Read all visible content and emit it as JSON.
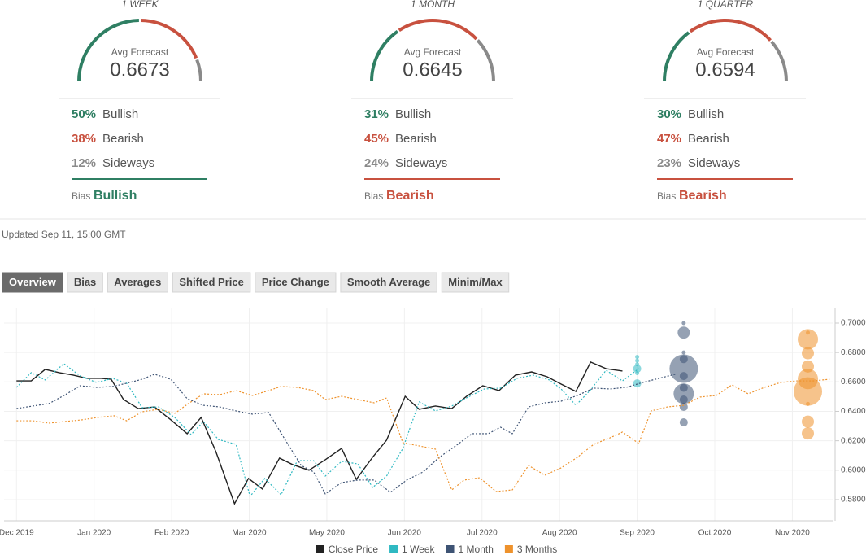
{
  "forecasts": [
    {
      "title": "1 WEEK",
      "avg_label": "Avg Forecast",
      "avg": 0.6673,
      "rows": [
        {
          "value": 50,
          "label": "50%",
          "name": "Bullish",
          "color": "#2f7f63"
        },
        {
          "value": 38,
          "label": "38%",
          "name": "Bearish",
          "color": "#c8513f"
        },
        {
          "value": 12,
          "label": "12%",
          "name": "Sideways",
          "color": "#8a8a8a"
        }
      ],
      "bias_label": "Bias",
      "bias": "Bullish",
      "bias_color": "#2f7f63"
    },
    {
      "title": "1 MONTH",
      "avg_label": "Avg Forecast",
      "avg": 0.6645,
      "rows": [
        {
          "value": 31,
          "label": "31%",
          "name": "Bullish",
          "color": "#2f7f63"
        },
        {
          "value": 45,
          "label": "45%",
          "name": "Bearish",
          "color": "#c8513f"
        },
        {
          "value": 24,
          "label": "24%",
          "name": "Sideways",
          "color": "#8a8a8a"
        }
      ],
      "bias_label": "Bias",
      "bias": "Bearish",
      "bias_color": "#c8513f"
    },
    {
      "title": "1 QUARTER",
      "avg_label": "Avg Forecast",
      "avg": 0.6594,
      "rows": [
        {
          "value": 30,
          "label": "30%",
          "name": "Bullish",
          "color": "#2f7f63"
        },
        {
          "value": 47,
          "label": "47%",
          "name": "Bearish",
          "color": "#c8513f"
        },
        {
          "value": 23,
          "label": "23%",
          "name": "Sideways",
          "color": "#8a8a8a"
        }
      ],
      "bias_label": "Bias",
      "bias": "Bearish",
      "bias_color": "#c8513f"
    }
  ],
  "updated": "Updated Sep 11, 15:00 GMT",
  "tabs": [
    "Overview",
    "Bias",
    "Averages",
    "Shifted Price",
    "Price Change",
    "Smooth Average",
    "Minim/Max"
  ],
  "active_tab": 0,
  "chart_data": {
    "type": "line",
    "grid": true,
    "xlim": [
      -0.16,
      10.53
    ],
    "ylim": [
      0.5656,
      0.7105
    ],
    "xticks": [
      {
        "value": 0,
        "label": "Dec 2019"
      },
      {
        "value": 1,
        "label": "Jan 2020"
      },
      {
        "value": 2,
        "label": "Feb 2020"
      },
      {
        "value": 3,
        "label": "Mar 2020"
      },
      {
        "value": 4,
        "label": "May 2020"
      },
      {
        "value": 5,
        "label": "Jun 2020"
      },
      {
        "value": 6,
        "label": "Jul 2020"
      },
      {
        "value": 7,
        "label": "Aug 2020"
      },
      {
        "value": 8,
        "label": "Sep 2020"
      },
      {
        "value": 9,
        "label": "Oct 2020"
      },
      {
        "value": 10,
        "label": "Nov 2020"
      }
    ],
    "yticks": [
      {
        "value": 0.7,
        "label": "0.7000"
      },
      {
        "value": 0.68,
        "label": "0.6800"
      },
      {
        "value": 0.66,
        "label": "0.6600"
      },
      {
        "value": 0.64,
        "label": "0.6400"
      },
      {
        "value": 0.62,
        "label": "0.6200"
      },
      {
        "value": 0.6,
        "label": "0.6000"
      },
      {
        "value": 0.58,
        "label": "0.5800"
      }
    ],
    "series": [
      {
        "name": "Close Price",
        "color": "#222222",
        "dashed": false,
        "x": [
          0,
          0.19,
          0.37,
          0.55,
          0.73,
          0.91,
          1.09,
          1.22,
          1.38,
          1.57,
          1.78,
          1.99,
          2.2,
          2.38,
          2.57,
          2.81,
          2.99,
          3.17,
          3.39,
          3.56,
          3.77,
          3.98,
          4.19,
          4.38,
          4.59,
          4.77,
          5.01,
          5.19,
          5.4,
          5.61,
          5.8,
          6.01,
          6.22,
          6.43,
          6.64,
          6.84,
          7.02,
          7.21,
          7.4,
          7.6,
          7.81
        ],
        "values": [
          0.6607,
          0.6607,
          0.6685,
          0.6663,
          0.6646,
          0.6624,
          0.6624,
          0.6618,
          0.648,
          0.6419,
          0.643,
          0.6342,
          0.6248,
          0.6359,
          0.6126,
          0.5772,
          0.5944,
          0.5872,
          0.6082,
          0.6038,
          0.6,
          0.6071,
          0.6148,
          0.5938,
          0.6088,
          0.6204,
          0.6502,
          0.6414,
          0.6436,
          0.6419,
          0.6502,
          0.6574,
          0.6541,
          0.6646,
          0.6668,
          0.6635,
          0.6585,
          0.6535,
          0.6735,
          0.669,
          0.6674
        ]
      },
      {
        "name": "1 Week",
        "color": "#2fb9c2",
        "dashed": true,
        "x": [
          0,
          0.19,
          0.37,
          0.61,
          0.82,
          1.03,
          1.24,
          1.42,
          1.62,
          1.83,
          2.04,
          2.25,
          2.41,
          2.6,
          2.83,
          3.01,
          3.2,
          3.41,
          3.62,
          3.83,
          3.98,
          4.19,
          4.4,
          4.59,
          4.77,
          4.98,
          5.19,
          5.4,
          5.61,
          5.82,
          6.03,
          6.24,
          6.45,
          6.66,
          6.87,
          7.02,
          7.21,
          7.39,
          7.6,
          7.81,
          8.02
        ],
        "values": [
          0.6563,
          0.6663,
          0.6613,
          0.6724,
          0.6641,
          0.6596,
          0.6624,
          0.6591,
          0.6425,
          0.643,
          0.6359,
          0.6242,
          0.6331,
          0.6209,
          0.6176,
          0.5822,
          0.5944,
          0.5833,
          0.6065,
          0.6065,
          0.596,
          0.606,
          0.6043,
          0.5883,
          0.596,
          0.6148,
          0.6464,
          0.6403,
          0.6436,
          0.6497,
          0.6552,
          0.6558,
          0.6624,
          0.6646,
          0.6613,
          0.6552,
          0.6441,
          0.6541,
          0.6679,
          0.6607,
          0.669
        ],
        "forecast_x": 8.0,
        "forecast_values": [
          0.677,
          0.6745,
          0.672,
          0.669,
          0.666,
          0.659
        ],
        "forecast_sizes": [
          1,
          1,
          1,
          2,
          1,
          2
        ]
      },
      {
        "name": "1 Month",
        "color": "#3e5374",
        "dashed": true,
        "x": [
          0,
          0.21,
          0.42,
          0.63,
          0.82,
          1.03,
          1.24,
          1.42,
          1.62,
          1.78,
          1.99,
          2.2,
          2.41,
          2.62,
          2.83,
          3.04,
          3.25,
          3.46,
          3.67,
          3.83,
          3.98,
          4.19,
          4.4,
          4.61,
          4.82,
          5.03,
          5.24,
          5.45,
          5.66,
          5.87,
          6.08,
          6.24,
          6.39,
          6.6,
          6.81,
          7.02,
          7.23,
          7.44,
          7.65,
          7.86,
          8.07,
          8.28,
          8.49
        ],
        "values": [
          0.6419,
          0.6436,
          0.6453,
          0.6513,
          0.6574,
          0.6563,
          0.6569,
          0.6591,
          0.6618,
          0.6652,
          0.6618,
          0.6486,
          0.6441,
          0.643,
          0.6403,
          0.6381,
          0.6392,
          0.6209,
          0.6032,
          0.5988,
          0.5839,
          0.5916,
          0.5933,
          0.5933,
          0.585,
          0.5933,
          0.5988,
          0.6088,
          0.6165,
          0.6248,
          0.6248,
          0.6292,
          0.6248,
          0.643,
          0.6458,
          0.6469,
          0.6508,
          0.6558,
          0.6552,
          0.6563,
          0.6596,
          0.6624,
          0.6652
        ],
        "forecast_x": 8.6,
        "forecast_values": [
          0.7,
          0.6935,
          0.68,
          0.6755,
          0.669,
          0.664,
          0.656,
          0.652,
          0.648,
          0.643,
          0.6325
        ],
        "forecast_sizes": [
          1,
          3,
          1,
          2,
          7,
          2,
          2,
          5,
          2,
          2,
          2
        ]
      },
      {
        "name": "3 Months",
        "color": "#ee922c",
        "dashed": true,
        "x": [
          0,
          0.21,
          0.42,
          0.63,
          0.84,
          1.05,
          1.26,
          1.42,
          1.62,
          1.83,
          2.04,
          2.2,
          2.41,
          2.62,
          2.83,
          3.04,
          3.25,
          3.41,
          3.62,
          3.83,
          3.98,
          4.19,
          4.4,
          4.61,
          4.77,
          4.98,
          5.19,
          5.4,
          5.61,
          5.77,
          5.97,
          6.18,
          6.39,
          6.6,
          6.81,
          7.02,
          7.23,
          7.44,
          7.65,
          7.81,
          8.02,
          8.18,
          8.39,
          8.6,
          8.81,
          9.02,
          9.22,
          9.43,
          9.64,
          9.85,
          10.06,
          10.27,
          10.48
        ],
        "values": [
          0.6336,
          0.6336,
          0.632,
          0.6331,
          0.6342,
          0.6359,
          0.637,
          0.6336,
          0.6397,
          0.6414,
          0.6386,
          0.6447,
          0.6519,
          0.6513,
          0.6541,
          0.6508,
          0.6541,
          0.6569,
          0.6563,
          0.6541,
          0.648,
          0.6502,
          0.648,
          0.6458,
          0.6491,
          0.6187,
          0.6165,
          0.6143,
          0.5866,
          0.5933,
          0.5949,
          0.5855,
          0.5866,
          0.6032,
          0.5966,
          0.6016,
          0.6088,
          0.6176,
          0.622,
          0.6259,
          0.6182,
          0.6403,
          0.643,
          0.6441,
          0.6497,
          0.6508,
          0.658,
          0.6519,
          0.6563,
          0.6596,
          0.6607,
          0.6607,
          0.6618
        ],
        "forecast_x": 10.2,
        "forecast_values": [
          0.6935,
          0.689,
          0.6795,
          0.6705,
          0.662,
          0.6535,
          0.645,
          0.633,
          0.625
        ],
        "forecast_sizes": [
          1,
          5,
          3,
          3,
          5,
          7,
          1,
          3,
          3
        ]
      }
    ]
  }
}
